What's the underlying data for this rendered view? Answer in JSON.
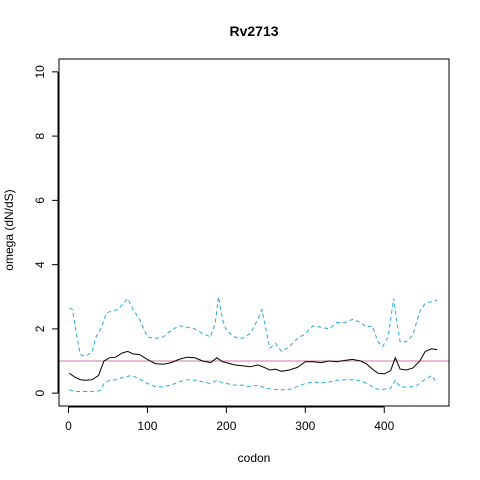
{
  "chart_data": {
    "type": "line",
    "title": "Rv2713",
    "xlabel": "codon",
    "ylabel": "omega (dN/dS)",
    "xlim": [
      -12,
      482
    ],
    "ylim": [
      -0.4,
      10.4
    ],
    "x_ticks": [
      0,
      100,
      200,
      300,
      400
    ],
    "y_ticks": [
      0,
      2,
      4,
      6,
      8,
      10
    ],
    "grid": false,
    "reference_line": {
      "y": 1,
      "color": "#cc79a7"
    },
    "colors": {
      "estimate": "#000000",
      "bounds": "#29a8e0"
    },
    "series": [
      {
        "style": "solid",
        "x": [
          1,
          8,
          15,
          22,
          30,
          38,
          45,
          52,
          60,
          68,
          75,
          82,
          90,
          100,
          110,
          120,
          130,
          140,
          150,
          160,
          170,
          180,
          188,
          195,
          200,
          210,
          220,
          230,
          240,
          248,
          255,
          262,
          270,
          280,
          290,
          300,
          310,
          320,
          330,
          340,
          350,
          360,
          370,
          378,
          385,
          392,
          400,
          408,
          414,
          420,
          428,
          436,
          445,
          452,
          460,
          467
        ],
        "y": [
          0.62,
          0.5,
          0.42,
          0.4,
          0.42,
          0.55,
          1.0,
          1.1,
          1.12,
          1.25,
          1.3,
          1.22,
          1.2,
          1.05,
          0.92,
          0.9,
          0.95,
          1.05,
          1.12,
          1.1,
          1.0,
          0.95,
          1.1,
          0.98,
          0.95,
          0.88,
          0.85,
          0.82,
          0.88,
          0.8,
          0.72,
          0.75,
          0.68,
          0.72,
          0.8,
          0.98,
          0.98,
          0.95,
          1.0,
          0.98,
          1.02,
          1.05,
          1.0,
          0.9,
          0.75,
          0.62,
          0.6,
          0.7,
          1.1,
          0.75,
          0.72,
          0.78,
          1.0,
          1.3,
          1.38,
          1.35
        ]
      },
      {
        "style": "dashed",
        "x": [
          1,
          5,
          10,
          15,
          20,
          25,
          30,
          35,
          42,
          48,
          55,
          62,
          70,
          75,
          82,
          90,
          100,
          110,
          120,
          130,
          140,
          150,
          160,
          170,
          180,
          186,
          190,
          195,
          200,
          205,
          210,
          220,
          230,
          240,
          245,
          250,
          255,
          262,
          270,
          280,
          290,
          300,
          310,
          320,
          330,
          340,
          350,
          360,
          370,
          378,
          385,
          392,
          398,
          405,
          412,
          416,
          420,
          428,
          436,
          445,
          452,
          460,
          467
        ],
        "y": [
          2.65,
          2.6,
          1.85,
          1.2,
          1.15,
          1.2,
          1.3,
          1.75,
          2.05,
          2.5,
          2.55,
          2.6,
          2.8,
          2.95,
          2.6,
          2.3,
          1.75,
          1.7,
          1.75,
          1.95,
          2.1,
          2.05,
          2.0,
          1.85,
          1.75,
          2.2,
          3.0,
          2.3,
          1.95,
          1.85,
          1.75,
          1.7,
          1.85,
          2.3,
          2.6,
          2.0,
          1.4,
          1.55,
          1.3,
          1.45,
          1.7,
          1.85,
          2.1,
          2.05,
          2.0,
          2.2,
          2.2,
          2.3,
          2.2,
          2.05,
          2.1,
          1.6,
          1.45,
          1.75,
          2.95,
          2.2,
          1.6,
          1.6,
          1.8,
          2.55,
          2.8,
          2.85,
          2.9
        ]
      },
      {
        "style": "dashed",
        "x": [
          1,
          10,
          20,
          30,
          40,
          45,
          52,
          60,
          70,
          80,
          90,
          100,
          110,
          120,
          130,
          140,
          150,
          160,
          170,
          180,
          188,
          195,
          200,
          210,
          220,
          230,
          240,
          250,
          260,
          270,
          280,
          290,
          300,
          310,
          320,
          330,
          340,
          350,
          360,
          370,
          378,
          385,
          392,
          400,
          408,
          414,
          420,
          430,
          440,
          450,
          460,
          467
        ],
        "y": [
          0.1,
          0.05,
          0.05,
          0.05,
          0.08,
          0.3,
          0.4,
          0.42,
          0.5,
          0.55,
          0.45,
          0.3,
          0.2,
          0.2,
          0.25,
          0.35,
          0.42,
          0.4,
          0.35,
          0.3,
          0.4,
          0.32,
          0.3,
          0.25,
          0.25,
          0.2,
          0.25,
          0.15,
          0.12,
          0.1,
          0.12,
          0.2,
          0.3,
          0.35,
          0.32,
          0.35,
          0.4,
          0.42,
          0.42,
          0.38,
          0.3,
          0.2,
          0.12,
          0.12,
          0.15,
          0.4,
          0.2,
          0.18,
          0.22,
          0.4,
          0.55,
          0.3
        ]
      }
    ]
  }
}
